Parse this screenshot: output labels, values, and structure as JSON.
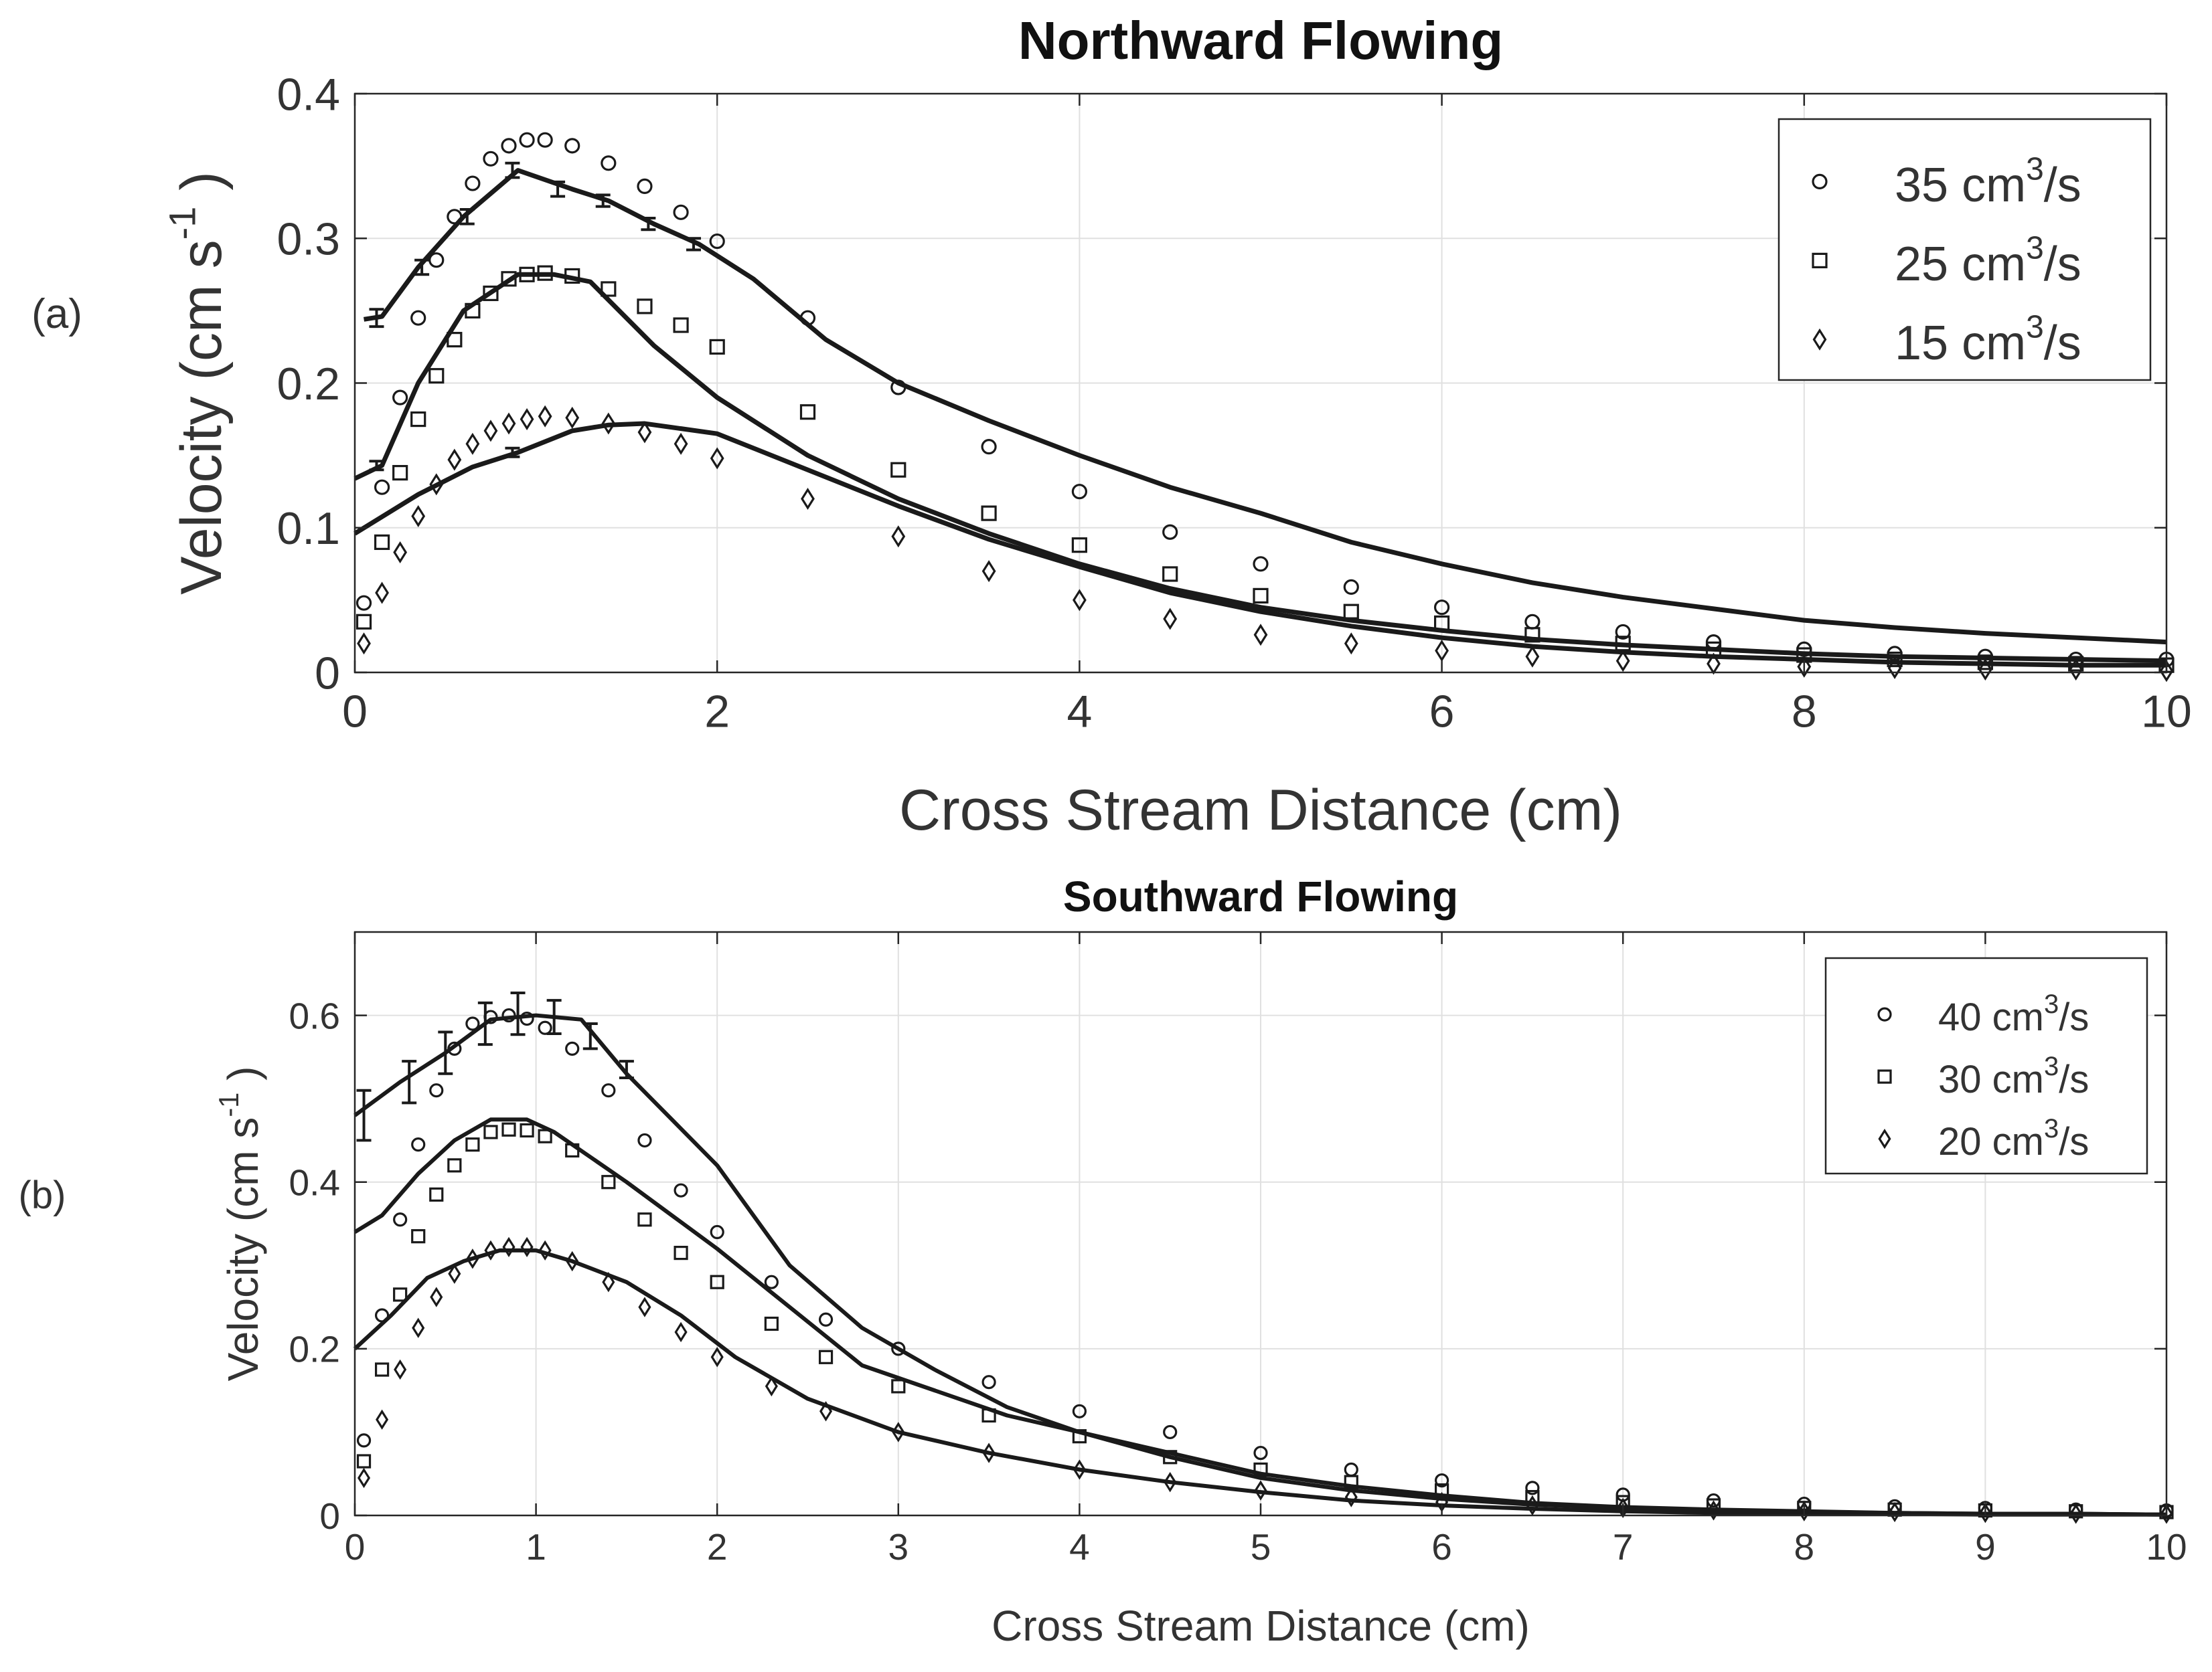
{
  "chart_data": [
    {
      "type": "line",
      "panel_label": "(a)",
      "title": "Northward Flowing",
      "xlabel": "Cross Stream Distance (cm)",
      "ylabel": "Velocity (cm s",
      "ylabel_sup": "-1",
      "ylabel_end": ")",
      "xlim": [
        0,
        10
      ],
      "ylim": [
        0,
        0.4
      ],
      "xticks": [
        0,
        2,
        4,
        6,
        8,
        10
      ],
      "yticks": [
        0,
        0.1,
        0.2,
        0.3,
        0.4
      ],
      "xtick_labels": [
        "0",
        "2",
        "4",
        "6",
        "8",
        "10"
      ],
      "ytick_labels": [
        "0",
        "0.1",
        "0.2",
        "0.3",
        "0.4"
      ],
      "grid": true,
      "legend_position": "top-right",
      "legend": [
        {
          "marker": "circle",
          "text": "35 cm",
          "sup": "3",
          "tail": "/s"
        },
        {
          "marker": "square",
          "text": "25 cm",
          "sup": "3",
          "tail": "/s"
        },
        {
          "marker": "diamond",
          "text": "15 cm",
          "sup": "3",
          "tail": "/s"
        }
      ],
      "marker_series": [
        {
          "name": "35 cm3/s",
          "marker": "circle",
          "x": [
            0.05,
            0.15,
            0.25,
            0.35,
            0.45,
            0.55,
            0.65,
            0.75,
            0.85,
            0.95,
            1.05,
            1.2,
            1.4,
            1.6,
            1.8,
            2.0,
            2.5,
            3.0,
            3.5,
            4.0,
            4.5,
            5.0,
            5.5,
            6.0,
            6.5,
            7.0,
            7.5,
            8.0,
            8.5,
            9.0,
            9.5,
            10.0
          ],
          "y": [
            0.048,
            0.128,
            0.19,
            0.245,
            0.285,
            0.315,
            0.338,
            0.355,
            0.364,
            0.368,
            0.368,
            0.364,
            0.352,
            0.336,
            0.318,
            0.298,
            0.245,
            0.197,
            0.156,
            0.125,
            0.097,
            0.075,
            0.059,
            0.045,
            0.035,
            0.028,
            0.021,
            0.016,
            0.013,
            0.011,
            0.009,
            0.009
          ]
        },
        {
          "name": "25 cm3/s",
          "marker": "square",
          "x": [
            0.05,
            0.15,
            0.25,
            0.35,
            0.45,
            0.55,
            0.65,
            0.75,
            0.85,
            0.95,
            1.05,
            1.2,
            1.4,
            1.6,
            1.8,
            2.0,
            2.5,
            3.0,
            3.5,
            4.0,
            4.5,
            5.0,
            5.5,
            6.0,
            6.5,
            7.0,
            7.5,
            8.0,
            8.5,
            9.0,
            9.5,
            10.0
          ],
          "y": [
            0.035,
            0.09,
            0.138,
            0.175,
            0.205,
            0.23,
            0.25,
            0.262,
            0.272,
            0.275,
            0.276,
            0.274,
            0.265,
            0.253,
            0.24,
            0.225,
            0.18,
            0.14,
            0.11,
            0.088,
            0.068,
            0.053,
            0.042,
            0.034,
            0.026,
            0.02,
            0.016,
            0.012,
            0.009,
            0.007,
            0.006,
            0.005
          ]
        },
        {
          "name": "15 cm3/s",
          "marker": "diamond",
          "x": [
            0.05,
            0.15,
            0.25,
            0.35,
            0.45,
            0.55,
            0.65,
            0.75,
            0.85,
            0.95,
            1.05,
            1.2,
            1.4,
            1.6,
            1.8,
            2.0,
            2.5,
            3.0,
            3.5,
            4.0,
            4.5,
            5.0,
            5.5,
            6.0,
            6.5,
            7.0,
            7.5,
            8.0,
            8.5,
            9.0,
            9.5,
            10.0
          ],
          "y": [
            0.02,
            0.055,
            0.083,
            0.108,
            0.13,
            0.147,
            0.158,
            0.167,
            0.172,
            0.175,
            0.177,
            0.176,
            0.172,
            0.166,
            0.158,
            0.148,
            0.12,
            0.094,
            0.07,
            0.05,
            0.037,
            0.026,
            0.02,
            0.015,
            0.011,
            0.008,
            0.006,
            0.004,
            0.003,
            0.002,
            0.002,
            0.001
          ]
        }
      ],
      "line_series": [
        {
          "name": "35 cm3/s fit",
          "x": [
            0.05,
            0.15,
            0.35,
            0.6,
            0.9,
            1.2,
            1.4,
            1.65,
            1.9,
            2.2,
            2.6,
            3.0,
            3.5,
            4.0,
            4.5,
            5.0,
            5.5,
            6.0,
            6.5,
            7.0,
            7.5,
            8.0,
            8.5,
            9.0,
            9.5,
            10.0
          ],
          "y": [
            0.244,
            0.246,
            0.28,
            0.315,
            0.347,
            0.334,
            0.326,
            0.31,
            0.296,
            0.272,
            0.23,
            0.2,
            0.174,
            0.15,
            0.128,
            0.11,
            0.09,
            0.075,
            0.062,
            0.052,
            0.044,
            0.036,
            0.031,
            0.027,
            0.024,
            0.021
          ]
        },
        {
          "name": "25 cm3/s fit",
          "x": [
            0.0,
            0.15,
            0.35,
            0.6,
            0.9,
            1.1,
            1.3,
            1.65,
            2.0,
            2.5,
            3.0,
            3.5,
            4.0,
            4.5,
            5.0,
            5.5,
            6.0,
            6.5,
            7.0,
            7.5,
            8.0,
            8.5,
            9.0,
            9.5,
            10.0
          ],
          "y": [
            0.134,
            0.143,
            0.2,
            0.25,
            0.275,
            0.275,
            0.27,
            0.226,
            0.19,
            0.15,
            0.12,
            0.096,
            0.075,
            0.058,
            0.045,
            0.036,
            0.029,
            0.023,
            0.019,
            0.016,
            0.013,
            0.011,
            0.01,
            0.009,
            0.008
          ]
        },
        {
          "name": "15 cm3/s fit",
          "x": [
            0.0,
            0.35,
            0.65,
            0.9,
            1.2,
            1.4,
            1.6,
            2.0,
            2.5,
            3.0,
            3.5,
            4.0,
            4.5,
            5.0,
            5.5,
            6.0,
            6.5,
            7.0,
            7.5,
            8.0,
            8.5,
            9.0,
            9.5,
            10.0
          ],
          "y": [
            0.096,
            0.123,
            0.142,
            0.152,
            0.167,
            0.171,
            0.172,
            0.165,
            0.14,
            0.115,
            0.092,
            0.073,
            0.055,
            0.042,
            0.032,
            0.024,
            0.018,
            0.014,
            0.011,
            0.009,
            0.007,
            0.006,
            0.005,
            0.005
          ]
        }
      ],
      "error_bars": [
        {
          "x": 0.12,
          "y": 0.245,
          "err": 0.006
        },
        {
          "x": 0.37,
          "y": 0.28,
          "err": 0.005
        },
        {
          "x": 0.62,
          "y": 0.315,
          "err": 0.005
        },
        {
          "x": 0.87,
          "y": 0.347,
          "err": 0.005
        },
        {
          "x": 1.12,
          "y": 0.334,
          "err": 0.005
        },
        {
          "x": 1.37,
          "y": 0.326,
          "err": 0.004
        },
        {
          "x": 1.62,
          "y": 0.31,
          "err": 0.004
        },
        {
          "x": 1.87,
          "y": 0.296,
          "err": 0.004
        },
        {
          "x": 0.12,
          "y": 0.143,
          "err": 0.003
        },
        {
          "x": 0.87,
          "y": 0.152,
          "err": 0.003
        }
      ]
    },
    {
      "type": "line",
      "panel_label": "(b)",
      "title": "Southward Flowing",
      "xlabel": "Cross Stream Distance (cm)",
      "ylabel": "Velocity (cm s",
      "ylabel_sup": "-1",
      "ylabel_end": ")",
      "xlim": [
        0,
        10
      ],
      "ylim": [
        0,
        0.7
      ],
      "xticks": [
        0,
        1,
        2,
        3,
        4,
        5,
        6,
        7,
        8,
        9,
        10
      ],
      "yticks": [
        0,
        0.2,
        0.4,
        0.6
      ],
      "xtick_labels": [
        "0",
        "1",
        "2",
        "3",
        "4",
        "5",
        "6",
        "7",
        "8",
        "9",
        "10"
      ],
      "ytick_labels": [
        "0",
        "0.2",
        "0.4",
        "0.6"
      ],
      "grid": true,
      "legend_position": "top-right",
      "legend": [
        {
          "marker": "circle",
          "text": "40 cm",
          "sup": "3",
          "tail": "/s"
        },
        {
          "marker": "square",
          "text": "30 cm",
          "sup": "3",
          "tail": "/s"
        },
        {
          "marker": "diamond",
          "text": "20 cm",
          "sup": "3",
          "tail": "/s"
        }
      ],
      "marker_series": [
        {
          "name": "40 cm3/s",
          "marker": "circle",
          "x": [
            0.05,
            0.15,
            0.25,
            0.35,
            0.45,
            0.55,
            0.65,
            0.75,
            0.85,
            0.95,
            1.05,
            1.2,
            1.4,
            1.6,
            1.8,
            2.0,
            2.3,
            2.6,
            3.0,
            3.5,
            4.0,
            4.5,
            5.0,
            5.5,
            6.0,
            6.5,
            7.0,
            7.5,
            8.0,
            8.5,
            9.0,
            9.5,
            10.0
          ],
          "y": [
            0.09,
            0.24,
            0.355,
            0.445,
            0.51,
            0.56,
            0.59,
            0.598,
            0.6,
            0.596,
            0.585,
            0.56,
            0.51,
            0.45,
            0.39,
            0.34,
            0.28,
            0.235,
            0.2,
            0.16,
            0.125,
            0.1,
            0.075,
            0.055,
            0.042,
            0.033,
            0.025,
            0.018,
            0.014,
            0.011,
            0.009,
            0.007,
            0.006
          ]
        },
        {
          "name": "30 cm3/s",
          "marker": "square",
          "x": [
            0.05,
            0.15,
            0.25,
            0.35,
            0.45,
            0.55,
            0.65,
            0.75,
            0.85,
            0.95,
            1.05,
            1.2,
            1.4,
            1.6,
            1.8,
            2.0,
            2.3,
            2.6,
            3.0,
            3.5,
            4.0,
            4.5,
            5.0,
            5.5,
            6.0,
            6.5,
            7.0,
            7.5,
            8.0,
            8.5,
            9.0,
            9.5,
            10.0
          ],
          "y": [
            0.065,
            0.175,
            0.265,
            0.335,
            0.385,
            0.42,
            0.445,
            0.46,
            0.463,
            0.462,
            0.455,
            0.438,
            0.4,
            0.355,
            0.315,
            0.28,
            0.23,
            0.19,
            0.155,
            0.12,
            0.095,
            0.07,
            0.055,
            0.04,
            0.03,
            0.022,
            0.016,
            0.012,
            0.009,
            0.007,
            0.006,
            0.005,
            0.004
          ]
        },
        {
          "name": "20 cm3/s",
          "marker": "diamond",
          "x": [
            0.05,
            0.15,
            0.25,
            0.35,
            0.45,
            0.55,
            0.65,
            0.75,
            0.85,
            0.95,
            1.05,
            1.2,
            1.4,
            1.6,
            1.8,
            2.0,
            2.3,
            2.6,
            3.0,
            3.5,
            4.0,
            4.5,
            5.0,
            5.5,
            6.0,
            6.5,
            7.0,
            7.5,
            8.0,
            8.5,
            9.0,
            9.5,
            10.0
          ],
          "y": [
            0.045,
            0.115,
            0.175,
            0.225,
            0.262,
            0.29,
            0.308,
            0.318,
            0.322,
            0.322,
            0.318,
            0.305,
            0.28,
            0.25,
            0.22,
            0.19,
            0.155,
            0.125,
            0.1,
            0.075,
            0.055,
            0.04,
            0.03,
            0.022,
            0.016,
            0.012,
            0.009,
            0.006,
            0.005,
            0.004,
            0.003,
            0.002,
            0.002
          ]
        }
      ],
      "line_series": [
        {
          "name": "40 cm3/s fit",
          "x": [
            0.0,
            0.25,
            0.5,
            0.75,
            1.0,
            1.25,
            1.5,
            1.75,
            2.0,
            2.4,
            2.8,
            3.2,
            3.6,
            4.0,
            4.5,
            5.0,
            5.5,
            6.0,
            6.5,
            7.0,
            7.5,
            8.0,
            8.5,
            9.0,
            9.5,
            10.0
          ],
          "y": [
            0.48,
            0.52,
            0.555,
            0.595,
            0.6,
            0.595,
            0.53,
            0.475,
            0.42,
            0.3,
            0.225,
            0.175,
            0.13,
            0.1,
            0.075,
            0.05,
            0.035,
            0.024,
            0.015,
            0.01,
            0.007,
            0.005,
            0.003,
            0.002,
            0.002,
            0.001
          ]
        },
        {
          "name": "30 cm3/s fit",
          "x": [
            0.0,
            0.15,
            0.35,
            0.55,
            0.75,
            0.95,
            1.1,
            1.3,
            1.5,
            1.75,
            2.0,
            2.4,
            2.8,
            3.2,
            3.6,
            4.0,
            4.5,
            5.0,
            5.5,
            6.0,
            6.5,
            7.0,
            7.5,
            8.0,
            8.5,
            9.0,
            9.5,
            10.0
          ],
          "y": [
            0.34,
            0.36,
            0.41,
            0.45,
            0.475,
            0.475,
            0.46,
            0.43,
            0.4,
            0.36,
            0.32,
            0.25,
            0.18,
            0.15,
            0.12,
            0.1,
            0.07,
            0.045,
            0.03,
            0.02,
            0.013,
            0.009,
            0.006,
            0.004,
            0.003,
            0.002,
            0.002,
            0.001
          ]
        },
        {
          "name": "20 cm3/s fit",
          "x": [
            0.0,
            0.2,
            0.4,
            0.6,
            0.8,
            1.0,
            1.2,
            1.5,
            1.8,
            2.1,
            2.5,
            3.0,
            3.5,
            4.0,
            4.5,
            5.0,
            5.5,
            6.0,
            6.5,
            7.0,
            7.5,
            8.0,
            8.5,
            9.0,
            9.5,
            10.0
          ],
          "y": [
            0.2,
            0.24,
            0.285,
            0.305,
            0.318,
            0.318,
            0.305,
            0.28,
            0.24,
            0.19,
            0.14,
            0.1,
            0.075,
            0.055,
            0.04,
            0.028,
            0.018,
            0.012,
            0.008,
            0.005,
            0.003,
            0.002,
            0.002,
            0.001,
            0.001,
            0.001
          ]
        }
      ],
      "error_bars": [
        {
          "x": 0.05,
          "y": 0.48,
          "err": 0.03
        },
        {
          "x": 0.3,
          "y": 0.52,
          "err": 0.025
        },
        {
          "x": 0.5,
          "y": 0.555,
          "err": 0.025
        },
        {
          "x": 0.72,
          "y": 0.59,
          "err": 0.025
        },
        {
          "x": 0.9,
          "y": 0.602,
          "err": 0.025
        },
        {
          "x": 1.1,
          "y": 0.598,
          "err": 0.02
        },
        {
          "x": 1.3,
          "y": 0.575,
          "err": 0.015
        },
        {
          "x": 1.5,
          "y": 0.535,
          "err": 0.01
        }
      ]
    }
  ]
}
